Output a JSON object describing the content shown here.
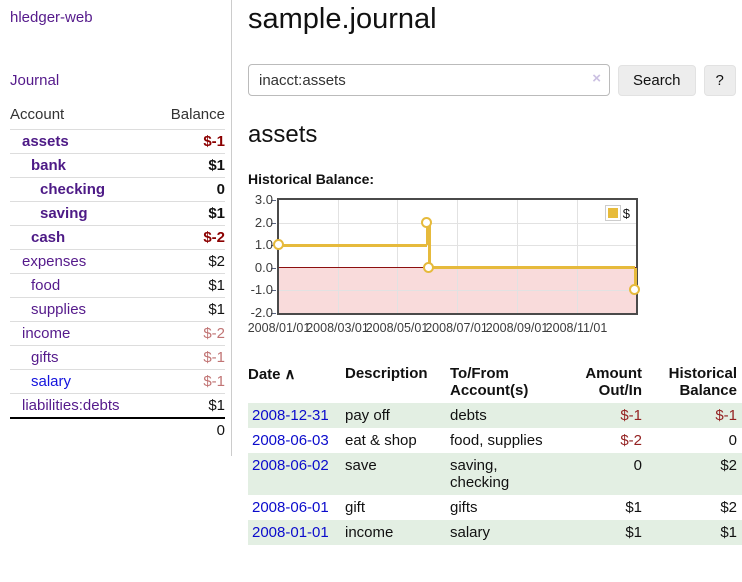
{
  "app": {
    "brand": "hledger-web",
    "nav": {
      "journal": "Journal"
    }
  },
  "sidebar": {
    "header": {
      "account": "Account",
      "balance": "Balance"
    },
    "accounts": [
      {
        "name": "assets",
        "balance": "$-1",
        "indent": 1,
        "bold": true,
        "balance_style": "negative-bold"
      },
      {
        "name": "bank",
        "balance": "$1",
        "indent": 2,
        "bold": true,
        "balance_style": "bold"
      },
      {
        "name": "checking",
        "balance": "0",
        "indent": 3,
        "bold": true,
        "balance_style": "bold"
      },
      {
        "name": "saving",
        "balance": "$1",
        "indent": 3,
        "bold": true,
        "balance_style": "bold"
      },
      {
        "name": "cash",
        "balance": "$-2",
        "indent": 2,
        "bold": true,
        "balance_style": "negative-bold"
      },
      {
        "name": "expenses",
        "balance": "$2",
        "indent": 1,
        "bold": false,
        "balance_style": "normal"
      },
      {
        "name": "food",
        "balance": "$1",
        "indent": 2,
        "bold": false,
        "balance_style": "normal"
      },
      {
        "name": "supplies",
        "balance": "$1",
        "indent": 2,
        "bold": false,
        "balance_style": "normal"
      },
      {
        "name": "income",
        "balance": "$-2",
        "indent": 1,
        "bold": false,
        "balance_style": "negative-dim"
      },
      {
        "name": "gifts",
        "balance": "$-1",
        "indent": 2,
        "bold": false,
        "balance_style": "negative-dim"
      },
      {
        "name": "salary",
        "balance": "$-1",
        "indent": 2,
        "bold": false,
        "balance_style": "negative-dim",
        "link_color": "blue"
      },
      {
        "name": "liabilities:debts",
        "balance": "$1",
        "indent": 1,
        "bold": false,
        "balance_style": "normal"
      }
    ],
    "total": "0"
  },
  "main": {
    "title": "sample.journal",
    "search": {
      "query": "inacct:assets",
      "clear_label": "×",
      "submit_label": "Search",
      "help_label": "?"
    },
    "account_title": "assets",
    "chart_title": "Historical Balance:"
  },
  "chart_data": {
    "type": "line",
    "step": true,
    "title": "Historical Balance:",
    "series": [
      {
        "name": "$",
        "color": "#e6ba3c",
        "points": [
          {
            "x": "2008-01-01",
            "y": 1
          },
          {
            "x": "2008-06-01",
            "y": 2
          },
          {
            "x": "2008-06-03",
            "y": 0
          },
          {
            "x": "2008-12-31",
            "y": -1
          }
        ]
      }
    ],
    "x_range": [
      "2008-01-01",
      "2009-01-01"
    ],
    "x_ticks": [
      "2008/01/01",
      "2008/03/01",
      "2008/05/01",
      "2008/07/01",
      "2008/09/01",
      "2008/11/01"
    ],
    "y_ticks": [
      3.0,
      2.0,
      1.0,
      0.0,
      -1.0,
      -2.0
    ],
    "ylim": [
      -2,
      3
    ],
    "grid": true,
    "legend_position": "top-right",
    "negative_region_shaded": true
  },
  "register": {
    "columns": [
      {
        "label": "Date",
        "sort": "∧",
        "align": "left"
      },
      {
        "label": "Description",
        "align": "left"
      },
      {
        "label": "To/From Account(s)",
        "align": "left"
      },
      {
        "label": "Amount Out/In",
        "align": "right"
      },
      {
        "label": "Historical Balance",
        "align": "right"
      }
    ],
    "rows": [
      {
        "date": "2008-12-31",
        "description": "pay off",
        "accounts": "debts",
        "amount": "$-1",
        "balance": "$-1",
        "amount_negative": true,
        "balance_negative": true
      },
      {
        "date": "2008-06-03",
        "description": "eat & shop",
        "accounts": "food, supplies",
        "amount": "$-2",
        "balance": "0",
        "amount_negative": true,
        "balance_negative": false
      },
      {
        "date": "2008-06-02",
        "description": "save",
        "accounts": "saving, checking",
        "amount": "0",
        "balance": "$2",
        "amount_negative": false,
        "balance_negative": false
      },
      {
        "date": "2008-06-01",
        "description": "gift",
        "accounts": "gifts",
        "amount": "$1",
        "balance": "$2",
        "amount_negative": false,
        "balance_negative": false
      },
      {
        "date": "2008-01-01",
        "description": "income",
        "accounts": "salary",
        "amount": "$1",
        "balance": "$1",
        "amount_negative": false,
        "balance_negative": false
      }
    ]
  },
  "colors": {
    "link_purple": "#551a8b",
    "link_blue": "#1414dd",
    "date_link_blue": "#0b0bcc",
    "negative_strong": "#8b0000",
    "negative_dim": "#c17474",
    "negative_table": "#942222",
    "row_green": "#e3efe3",
    "chart_line_gold": "#e6ba3c",
    "chart_negative_fill": "#f9dbdb",
    "chart_zero_line": "#8c0f0f",
    "chart_border": "#4a4a4a",
    "divider_gray": "#cccccc"
  }
}
